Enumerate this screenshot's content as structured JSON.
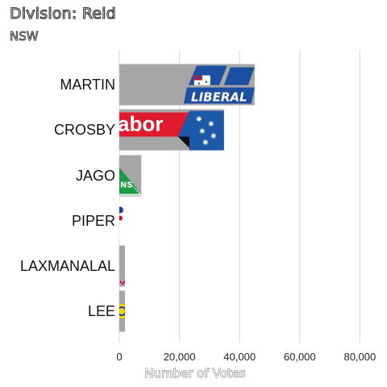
{
  "chart_data": {
    "type": "bar",
    "orientation": "horizontal",
    "title": "Division: Reid",
    "subtitle": "NSW",
    "xlabel": "Number of Votes",
    "ylabel": "",
    "xlim": [
      0,
      85000
    ],
    "x_ticks": [
      0,
      20000,
      40000,
      60000,
      80000
    ],
    "x_tick_labels": [
      "0",
      "20,000",
      "40,000",
      "60,000",
      "80,000"
    ],
    "grid": true,
    "categories": [
      "MARTIN",
      "CROSBY",
      "JAGO",
      "PIPER",
      "LAXMANALAL",
      "LEE"
    ],
    "values": [
      45000,
      34800,
      7300,
      2300,
      1900,
      1900
    ],
    "bar_color": "#a6a6a6",
    "party_logos": [
      "liberal",
      "labor",
      "greens",
      "other",
      "other",
      "other"
    ]
  }
}
